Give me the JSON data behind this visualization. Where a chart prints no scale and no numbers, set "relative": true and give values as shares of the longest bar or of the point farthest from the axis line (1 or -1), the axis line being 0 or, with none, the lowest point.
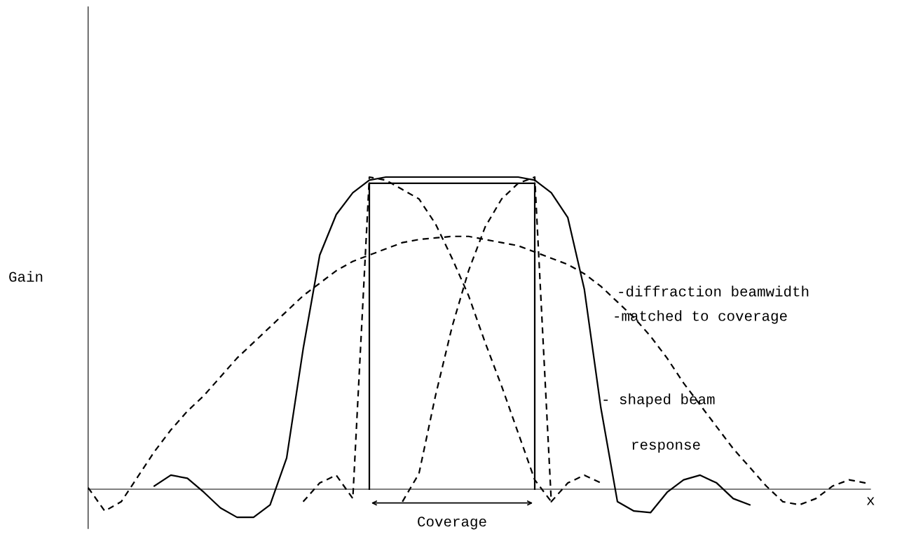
{
  "chart_data": {
    "type": "line",
    "relative": true,
    "ylabel": "Gain",
    "xlabel": "x",
    "grid": false,
    "marker": "none",
    "categories": [
      null,
      null,
      null,
      null,
      null,
      null,
      null,
      null,
      null,
      null,
      null,
      null,
      null,
      null,
      null,
      null,
      null,
      null,
      null,
      null,
      null,
      null,
      null,
      null,
      null,
      null,
      null,
      null,
      null,
      null,
      null,
      null,
      null,
      null,
      null,
      null,
      null,
      null,
      null,
      null,
      null,
      null,
      null,
      null,
      null,
      null,
      null,
      null
    ],
    "series": [
      {
        "color": "#000000",
        "line_style": "solid",
        "values": [
          null,
          null,
          null,
          null,
          0.01,
          0.045,
          0.035,
          -0.01,
          -0.06,
          -0.09,
          -0.09,
          -0.05,
          0.1,
          0.45,
          0.75,
          0.88,
          0.95,
          0.99,
          1.0,
          1.0,
          1.0,
          1.0,
          1.0,
          1.0,
          1.0,
          1.0,
          1.0,
          0.99,
          0.95,
          0.87,
          0.64,
          0.26,
          -0.04,
          -0.07,
          -0.075,
          -0.01,
          0.03,
          0.045,
          0.02,
          -0.03,
          -0.05,
          null,
          null,
          null,
          null,
          null,
          null,
          null
        ]
      },
      {
        "color": "#000000",
        "line_style": "dashed",
        "values": [
          0.005,
          -0.07,
          -0.04,
          0.04,
          0.12,
          0.19,
          0.25,
          0.3,
          0.36,
          0.42,
          0.47,
          0.52,
          0.57,
          0.62,
          0.66,
          0.7,
          0.73,
          0.75,
          0.77,
          0.79,
          0.8,
          0.805,
          0.81,
          0.81,
          0.8,
          0.79,
          0.78,
          0.76,
          0.74,
          0.72,
          0.69,
          0.65,
          0.6,
          0.55,
          0.49,
          0.42,
          0.34,
          0.27,
          0.2,
          0.13,
          0.07,
          0.01,
          -0.04,
          -0.05,
          -0.03,
          0.01,
          0.03,
          0.02
        ]
      },
      {
        "color": "#000000",
        "line_style": "dashed",
        "values": [
          null,
          null,
          null,
          null,
          null,
          null,
          null,
          null,
          null,
          null,
          null,
          null,
          null,
          -0.04,
          0.02,
          0.045,
          -0.03,
          1.0,
          0.99,
          0.96,
          0.93,
          0.85,
          0.74,
          0.62,
          0.47,
          0.33,
          0.18,
          0.03,
          -0.04,
          null,
          null,
          null,
          null,
          null,
          null,
          null,
          null,
          null,
          null,
          null,
          null,
          null,
          null,
          null,
          null,
          null,
          null,
          null
        ]
      },
      {
        "color": "#000000",
        "line_style": "dashed",
        "values": [
          null,
          null,
          null,
          null,
          null,
          null,
          null,
          null,
          null,
          null,
          null,
          null,
          null,
          null,
          null,
          null,
          null,
          null,
          null,
          -0.04,
          0.05,
          0.3,
          0.52,
          0.7,
          0.84,
          0.93,
          0.98,
          1.0,
          -0.04,
          0.02,
          0.045,
          0.02,
          null,
          null,
          null,
          null,
          null,
          null,
          null,
          null,
          null,
          null,
          null,
          null,
          null,
          null,
          null,
          null
        ]
      },
      {
        "color": "#000000",
        "line_style": "solid",
        "values": [
          null,
          null,
          null,
          null,
          null,
          null,
          null,
          null,
          null,
          null,
          null,
          null,
          null,
          null,
          null,
          null,
          null,
          0.98,
          0.98,
          0.98,
          0.98,
          0.98,
          0.98,
          0.98,
          0.98,
          0.98,
          0.98,
          0.98,
          null,
          null,
          null,
          null,
          null,
          null,
          null,
          null,
          null,
          null,
          null,
          null,
          null,
          null,
          null,
          null,
          null,
          null,
          null,
          null
        ]
      }
    ],
    "annotations": [
      "-diffraction beamwidth",
      "-matched to coverage",
      "- shaped beam",
      "response",
      "Coverage"
    ]
  }
}
